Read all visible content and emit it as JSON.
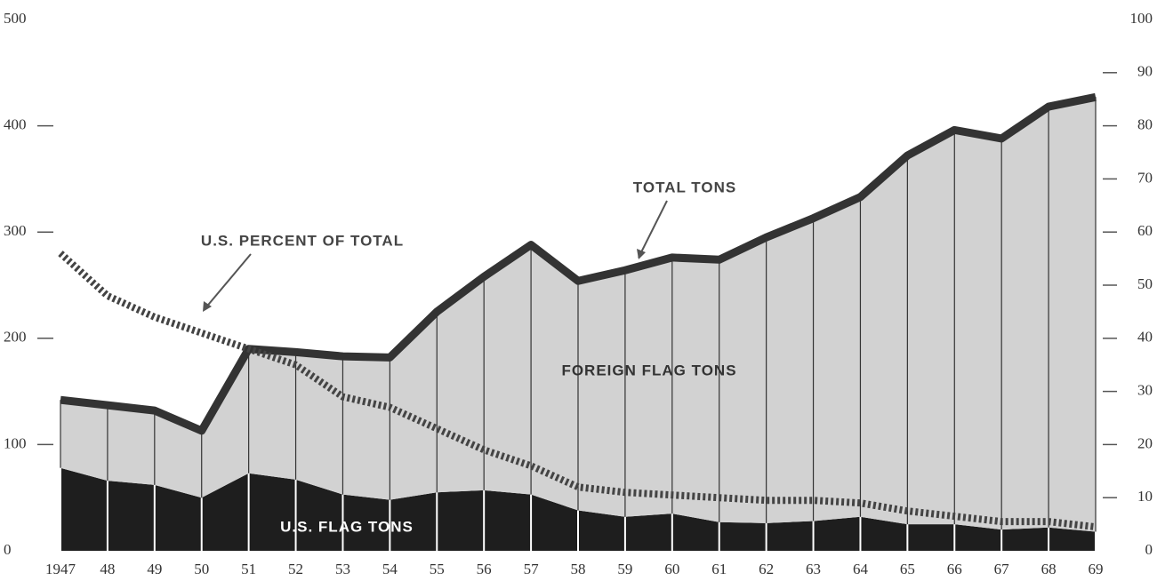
{
  "chart_data": {
    "type": "stacked_area",
    "categories": [
      "1947",
      "48",
      "49",
      "50",
      "51",
      "52",
      "53",
      "54",
      "55",
      "56",
      "57",
      "58",
      "59",
      "60",
      "61",
      "62",
      "63",
      "64",
      "65",
      "66",
      "67",
      "68",
      "69"
    ],
    "series": [
      {
        "name": "U.S. FLAG TONS",
        "color": "#1e1e1e",
        "values": [
          78,
          66,
          62,
          50,
          73,
          67,
          53,
          48,
          55,
          57,
          53,
          38,
          32,
          35,
          27,
          26,
          28,
          32,
          25,
          25,
          20,
          22,
          18
        ]
      },
      {
        "name": "FOREIGN FLAG TONS",
        "color": "#d2d2d2",
        "values": [
          64,
          71,
          70,
          63,
          117,
          120,
          130,
          134,
          170,
          201,
          235,
          216,
          232,
          241,
          247,
          269,
          285,
          301,
          347,
          371,
          368,
          396,
          409
        ]
      },
      {
        "name": "U.S. PERCENT OF TOTAL",
        "color": "#444444",
        "axis": "y2",
        "values": [
          56,
          48,
          44,
          41,
          38,
          35,
          29,
          27,
          23,
          19,
          16,
          12,
          11,
          10.5,
          10,
          9.5,
          9.5,
          9,
          7.5,
          6.5,
          5.5,
          5.5,
          4.5
        ]
      }
    ],
    "annotations": [
      "TOTAL TONS"
    ],
    "total_line_color": "#333333",
    "ylim": [
      0,
      500
    ],
    "yticks": [
      0,
      100,
      200,
      300,
      400,
      500
    ],
    "y2lim": [
      0,
      100
    ],
    "y2ticks": [
      0,
      10,
      20,
      30,
      40,
      50,
      60,
      70,
      80,
      90,
      100
    ]
  }
}
